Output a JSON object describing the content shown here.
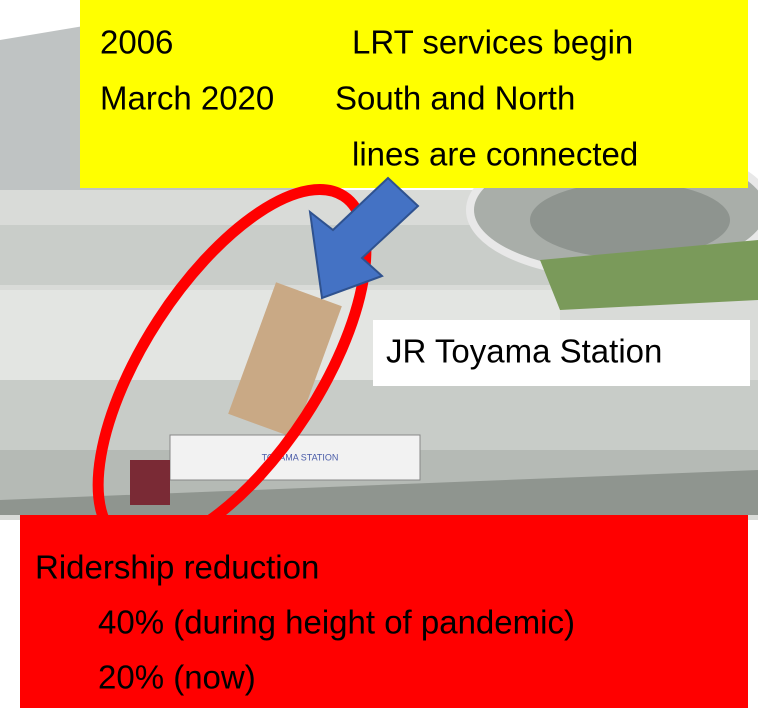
{
  "timeline": [
    {
      "date": "2006",
      "event": "LRT services begin"
    },
    {
      "date": "March 2020",
      "event": "South and North",
      "event_cont": "lines are connected"
    }
  ],
  "station_label": "JR Toyama Station",
  "station_sign": "TOYAMA STATION",
  "ridership": {
    "title": "Ridership reduction",
    "lines": [
      "40% (during height of pandemic)",
      "20% (now)"
    ]
  }
}
